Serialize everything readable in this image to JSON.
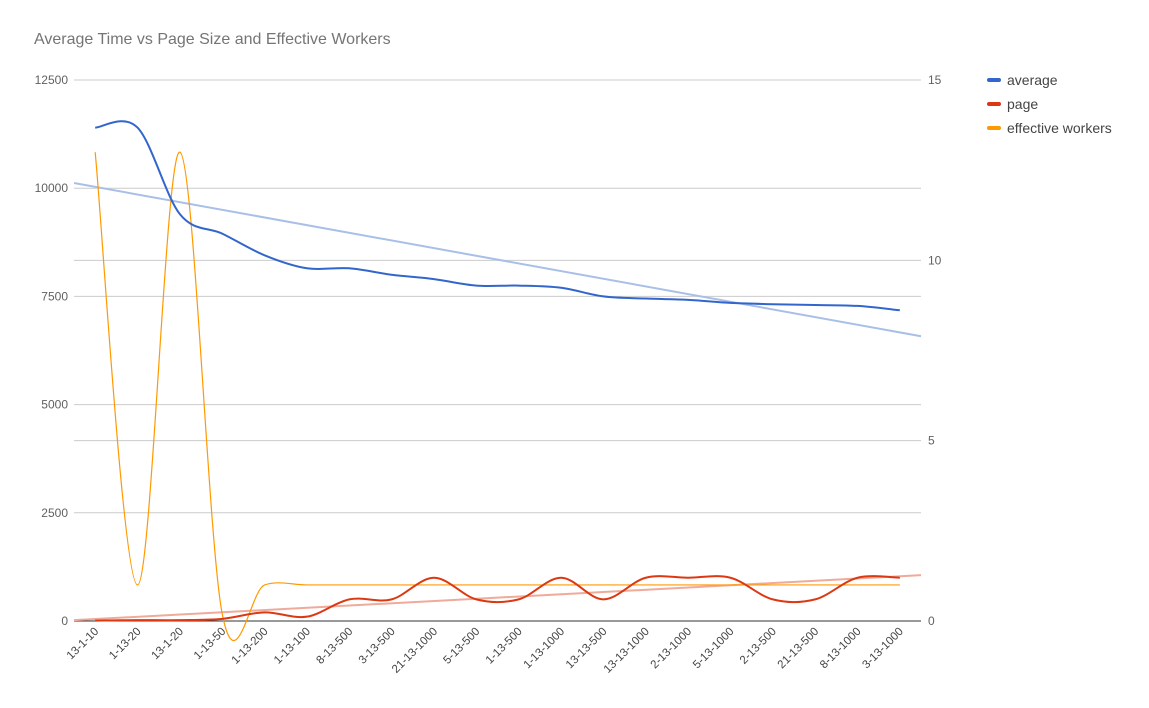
{
  "chart_data": {
    "type": "line",
    "title": "Average Time vs Page Size and Effective Workers",
    "categories": [
      "13-1-10",
      "1-13-20",
      "13-1-20",
      "1-13-50",
      "1-13-200",
      "1-13-100",
      "8-13-500",
      "3-13-500",
      "21-13-1000",
      "5-13-500",
      "1-13-500",
      "1-13-1000",
      "13-13-500",
      "13-13-1000",
      "2-13-1000",
      "5-13-1000",
      "2-13-500",
      "21-13-500",
      "8-13-1000",
      "3-13-1000"
    ],
    "y_left": {
      "ticks": [
        0,
        2500,
        5000,
        7500,
        10000,
        12500
      ],
      "range": [
        0,
        12500
      ]
    },
    "y_right": {
      "ticks": [
        0,
        5,
        10,
        15
      ],
      "range": [
        0,
        15
      ]
    },
    "series": [
      {
        "name": "average",
        "axis": "left",
        "color": "#3366cc",
        "trend_color": "#a9bfe8",
        "values": [
          11400,
          11400,
          9400,
          8950,
          8450,
          8150,
          8150,
          8000,
          7900,
          7750,
          7750,
          7700,
          7500,
          7450,
          7420,
          7350,
          7320,
          7300,
          7280,
          7180
        ],
        "trendline": [
          10120,
          6580
        ]
      },
      {
        "name": "page",
        "axis": "left",
        "color": "#dc3912",
        "trend_color": "#f0aa9a",
        "values": [
          10,
          20,
          20,
          50,
          200,
          100,
          500,
          500,
          1000,
          500,
          500,
          1000,
          500,
          1000,
          1000,
          1000,
          500,
          500,
          1000,
          1000
        ],
        "trendline": [
          20,
          1060
        ]
      },
      {
        "name": "effective workers",
        "axis": "right",
        "color": "#ff9900",
        "values": [
          13,
          1,
          13,
          0.2,
          1,
          1,
          1,
          1,
          1,
          1,
          1,
          1,
          1,
          1,
          1,
          1,
          1,
          1,
          1,
          1
        ]
      }
    ],
    "legend": "right",
    "grid": true
  }
}
